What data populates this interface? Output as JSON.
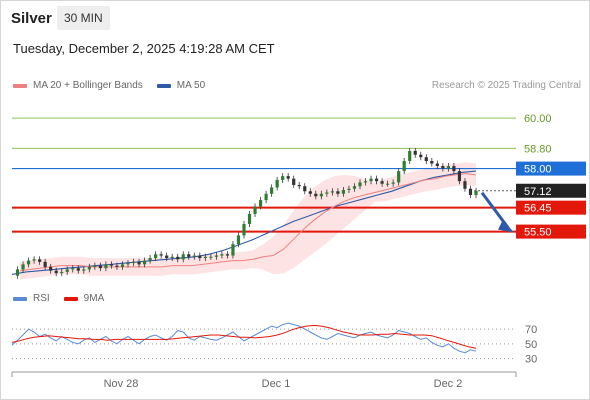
{
  "header": {
    "symbol": "Silver",
    "interval": "30 MIN",
    "datetime": "Tuesday, December 2, 2025 4:19:28 AM CET"
  },
  "legend": {
    "ma20": "MA 20 + Bollinger Bands",
    "ma50": "MA 50",
    "copyright": "Research © 2025 Trading Central"
  },
  "rsi_legend": {
    "rsi": "RSI",
    "ma": "9MA"
  },
  "colors": {
    "ma20": "#f08080",
    "ma50": "#2f5aa8",
    "bollinger_fill": "#fde0e0",
    "resistance_green": "#8cc152",
    "pivot_blue": "#1e6fd8",
    "support_red": "#e3170a",
    "last_price": "#222222",
    "candle": "#333333",
    "arrow": "#2f5aa8",
    "rsi": "#5b8bd6",
    "rsi_ma": "#e3170a"
  },
  "chart_data": [
    {
      "type": "line",
      "title": "",
      "price_axis": {
        "min": 53.5,
        "max": 60.8
      },
      "x_ticks": [
        "Nov 28",
        "Dec 1",
        "Dec 2"
      ],
      "levels": [
        {
          "label": "60.00",
          "value": 60.0,
          "kind": "resistance-green"
        },
        {
          "label": "58.80",
          "value": 58.8,
          "kind": "resistance-green"
        },
        {
          "label": "58.00",
          "value": 58.0,
          "kind": "pivot-blue"
        },
        {
          "label": "57.12",
          "value": 57.12,
          "kind": "last-price"
        },
        {
          "label": "56.45",
          "value": 56.45,
          "kind": "support-red"
        },
        {
          "label": "55.50",
          "value": 55.5,
          "kind": "support-red"
        }
      ],
      "price_series": [
        53.75,
        54.0,
        54.2,
        54.35,
        54.4,
        54.3,
        54.1,
        53.95,
        53.85,
        53.9,
        54.0,
        54.05,
        53.95,
        54.0,
        54.1,
        54.15,
        54.05,
        54.2,
        54.15,
        54.1,
        54.2,
        54.25,
        54.3,
        54.2,
        54.35,
        54.45,
        54.6,
        54.55,
        54.45,
        54.5,
        54.4,
        54.6,
        54.5,
        54.55,
        54.45,
        54.5,
        54.5,
        54.55,
        54.6,
        54.55,
        55.0,
        55.35,
        55.8,
        56.2,
        56.5,
        56.75,
        57.0,
        57.25,
        57.55,
        57.7,
        57.6,
        57.35,
        57.3,
        57.1,
        57.0,
        56.9,
        57.0,
        57.05,
        57.1,
        57.0,
        57.15,
        57.2,
        57.3,
        57.45,
        57.5,
        57.6,
        57.5,
        57.4,
        57.4,
        57.45,
        57.9,
        58.3,
        58.7,
        58.55,
        58.45,
        58.3,
        58.2,
        58.1,
        58.0,
        58.1,
        57.9,
        57.5,
        57.2,
        56.95,
        57.12
      ],
      "ma20_series": [
        53.95,
        54.0,
        54.05,
        54.1,
        54.15,
        54.15,
        54.15,
        54.1,
        54.1,
        54.1,
        54.1,
        54.1,
        54.1,
        54.1,
        54.1,
        54.15,
        54.15,
        54.15,
        54.2,
        54.25,
        54.3,
        54.35,
        54.35,
        54.4,
        54.5,
        54.55,
        54.8,
        55.2,
        55.6,
        55.95,
        56.25,
        56.5,
        56.7,
        56.85,
        56.95,
        57.05,
        57.15,
        57.25,
        57.35,
        57.45,
        57.55,
        57.6,
        57.7,
        57.75,
        57.8,
        57.75
      ],
      "ma50_series": [
        53.8,
        53.9,
        53.95,
        54.0,
        54.05,
        54.1,
        54.15,
        54.2,
        54.25,
        54.3,
        54.35,
        54.4,
        54.45,
        54.5,
        54.6,
        54.75,
        54.95,
        55.15,
        55.4,
        55.65,
        55.9,
        56.1,
        56.3,
        56.5,
        56.65,
        56.8,
        56.95,
        57.1,
        57.3,
        57.5,
        57.65,
        57.75,
        57.85,
        57.9
      ]
    },
    {
      "type": "line",
      "title": "",
      "rsi_axis": {
        "min": 20,
        "max": 85
      },
      "levels": [
        70,
        50,
        30
      ],
      "tick_labels": [
        "70",
        "50",
        "30"
      ],
      "rsi_series": [
        48,
        55,
        62,
        70,
        66,
        60,
        63,
        58,
        54,
        60,
        56,
        52,
        50,
        55,
        58,
        52,
        56,
        60,
        54,
        50,
        56,
        60,
        55,
        50,
        56,
        60,
        62,
        58,
        55,
        60,
        68,
        66,
        58,
        55,
        60,
        58,
        56,
        55,
        58,
        62,
        66,
        60,
        54,
        58,
        62,
        66,
        70,
        74,
        72,
        76,
        78,
        76,
        74,
        70,
        66,
        62,
        58,
        56,
        60,
        64,
        62,
        60,
        58,
        62,
        64,
        66,
        62,
        60,
        58,
        62,
        68,
        66,
        64,
        60,
        56,
        58,
        52,
        48,
        46,
        50,
        44,
        40,
        38,
        42,
        40
      ],
      "ma_series": [
        52,
        54,
        57,
        59,
        60,
        61,
        60,
        59,
        58,
        57,
        57,
        56,
        56,
        55,
        56,
        56,
        56,
        56,
        56,
        56,
        56,
        56,
        57,
        58,
        59,
        60,
        61,
        62,
        62,
        61,
        60,
        59,
        59,
        58,
        59,
        60,
        62,
        65,
        69,
        72,
        74,
        75,
        74,
        72,
        69,
        66,
        64,
        62,
        62,
        62,
        63,
        63,
        64,
        63,
        62,
        62,
        62,
        61,
        58,
        55,
        52,
        49,
        46,
        44
      ]
    }
  ]
}
